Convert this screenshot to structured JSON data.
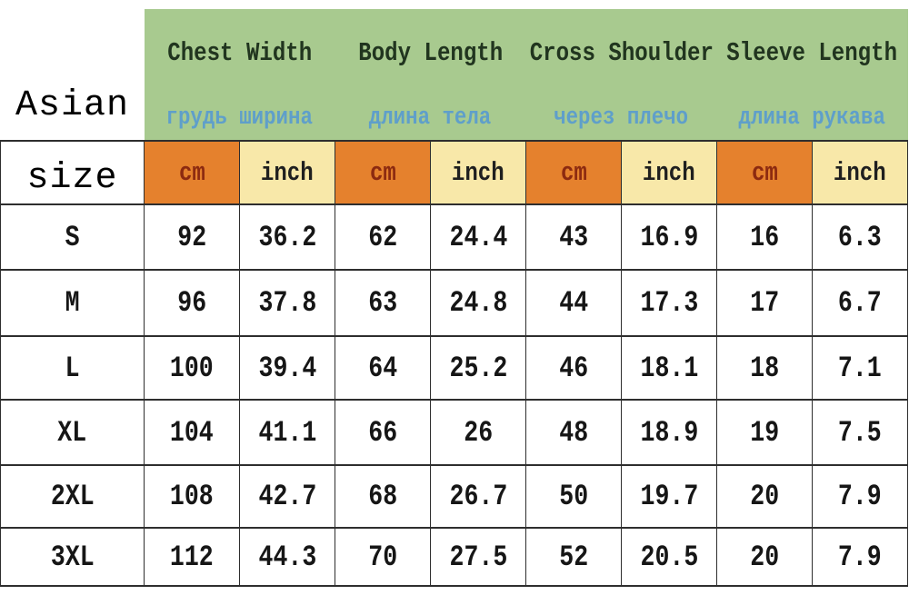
{
  "title": {
    "line1": "Asian",
    "line2": "size"
  },
  "header": {
    "columns": [
      {
        "en": "Chest Width",
        "ru": "грудь ширина"
      },
      {
        "en": "Body Length",
        "ru": "длина тела"
      },
      {
        "en": "Cross Shoulder",
        "ru": "через плечо"
      },
      {
        "en": "Sleeve Length",
        "ru": "длина рукава"
      }
    ],
    "units": [
      "cm",
      "inch"
    ]
  },
  "table": {
    "rows": [
      {
        "size": "S",
        "values": [
          "92",
          "36.2",
          "62",
          "24.4",
          "43",
          "16.9",
          "16",
          "6.3"
        ]
      },
      {
        "size": "M",
        "values": [
          "96",
          "37.8",
          "63",
          "24.8",
          "44",
          "17.3",
          "17",
          "6.7"
        ]
      },
      {
        "size": "L",
        "values": [
          "100",
          "39.4",
          "64",
          "25.2",
          "46",
          "18.1",
          "18",
          "7.1"
        ]
      },
      {
        "size": "XL",
        "values": [
          "104",
          "41.1",
          "66",
          "26",
          "48",
          "18.9",
          "19",
          "7.5"
        ]
      },
      {
        "size": "2XL",
        "values": [
          "108",
          "42.7",
          "68",
          "26.7",
          "50",
          "19.7",
          "20",
          "7.9"
        ]
      },
      {
        "size": "3XL",
        "values": [
          "112",
          "44.3",
          "70",
          "27.5",
          "52",
          "20.5",
          "20",
          "7.9"
        ]
      }
    ]
  },
  "colors": {
    "page_bg": "#ffffff",
    "title_text": "#000000",
    "header_bg": "#a8ca8f",
    "header_text": "#21351f",
    "ru_text": "#5f9fca",
    "cm_bg": "#e5812d",
    "cm_text": "#8c2a10",
    "inch_bg": "#f8e8a9",
    "inch_text": "#1f1f1f",
    "border": "#2e2e2e"
  },
  "chart_data": {
    "type": "table",
    "title": "Asian size",
    "columns": [
      "Size",
      "Chest Width cm",
      "Chest Width inch",
      "Body Length cm",
      "Body Length inch",
      "Cross Shoulder cm",
      "Cross Shoulder inch",
      "Sleeve Length cm",
      "Sleeve Length inch"
    ],
    "column_translations_ru": [
      "",
      "грудь ширина",
      "грудь ширина",
      "длина тела",
      "длина тела",
      "через плечо",
      "через плечо",
      "длина рукава",
      "длина рукава"
    ],
    "rows": [
      [
        "S",
        92,
        36.2,
        62,
        24.4,
        43,
        16.9,
        16,
        6.3
      ],
      [
        "M",
        96,
        37.8,
        63,
        24.8,
        44,
        17.3,
        17,
        6.7
      ],
      [
        "L",
        100,
        39.4,
        64,
        25.2,
        46,
        18.1,
        18,
        7.1
      ],
      [
        "XL",
        104,
        41.1,
        66,
        26,
        48,
        18.9,
        19,
        7.5
      ],
      [
        "2XL",
        108,
        42.7,
        68,
        26.7,
        50,
        19.7,
        20,
        7.9
      ],
      [
        "3XL",
        112,
        44.3,
        70,
        27.5,
        52,
        20.5,
        20,
        7.9
      ]
    ]
  }
}
